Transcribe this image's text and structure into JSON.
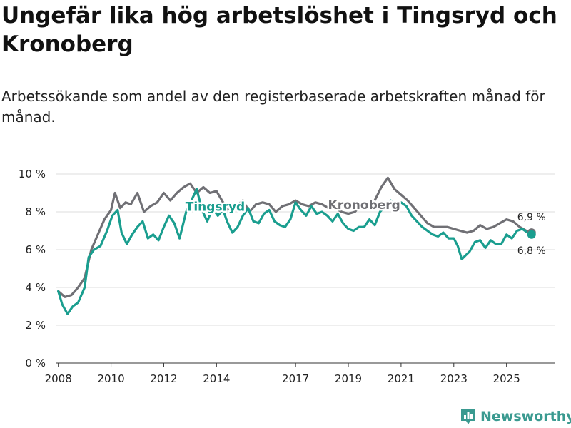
{
  "title": "Ungefär lika hög arbetslöshet i Tingsryd och Kronoberg",
  "subtitle": "Arbetssökande som andel av den registerbaserade arbetskraften månad för månad.",
  "colors": {
    "tingsryd": "#1a9e8f",
    "kronoberg": "#707075",
    "grid": "#dddddd",
    "axis": "#333333",
    "brand": "#3a9a90"
  },
  "logo": {
    "text": "Newsworthy",
    "icon": "bar-chart-icon"
  },
  "chart_data": {
    "type": "line",
    "title": "Ungefär lika hög arbetslöshet i Tingsryd och Kronoberg",
    "xlabel": "",
    "ylabel": "",
    "xlim": [
      2007.9,
      2026.85
    ],
    "ylim": [
      0,
      10
    ],
    "grid": true,
    "yticks": [
      0,
      2,
      4,
      6,
      8,
      10
    ],
    "ytick_labels": [
      "0 %",
      "2 %",
      "4 %",
      "6 %",
      "8 %",
      "10 %"
    ],
    "xticks": [
      2008,
      2010,
      2012,
      2014,
      2017,
      2019,
      2021,
      2023,
      2025
    ],
    "xtick_labels": [
      "2008",
      "2010",
      "2012",
      "2014",
      "2017",
      "2019",
      "2021",
      "2023",
      "2025"
    ],
    "series": [
      {
        "name": "Kronoberg",
        "label": "Kronoberg",
        "end_label": "6,9 %",
        "x": [
          2008.0,
          2008.25,
          2008.5,
          2008.75,
          2009.0,
          2009.25,
          2009.5,
          2009.75,
          2010.0,
          2010.15,
          2010.35,
          2010.55,
          2010.75,
          2011.0,
          2011.25,
          2011.5,
          2011.75,
          2012.0,
          2012.25,
          2012.5,
          2012.75,
          2013.0,
          2013.25,
          2013.5,
          2013.75,
          2014.0,
          2014.25,
          2014.5,
          2014.75,
          2015.0,
          2015.25,
          2015.5,
          2015.75,
          2016.0,
          2016.25,
          2016.5,
          2016.75,
          2017.0,
          2017.25,
          2017.5,
          2017.75,
          2018.0,
          2018.25,
          2018.5,
          2018.75,
          2019.0,
          2019.25,
          2019.5,
          2019.75,
          2020.0,
          2020.25,
          2020.5,
          2020.75,
          2021.0,
          2021.25,
          2021.5,
          2021.75,
          2022.0,
          2022.25,
          2022.5,
          2022.75,
          2023.0,
          2023.25,
          2023.5,
          2023.75,
          2024.0,
          2024.25,
          2024.5,
          2024.75,
          2025.0,
          2025.25,
          2025.5,
          2025.75,
          2025.95
        ],
        "values": [
          3.8,
          3.5,
          3.6,
          4.0,
          4.5,
          6.0,
          6.8,
          7.6,
          8.1,
          9.0,
          8.2,
          8.5,
          8.4,
          9.0,
          8.0,
          8.3,
          8.5,
          9.0,
          8.6,
          9.0,
          9.3,
          9.5,
          9.0,
          9.3,
          9.0,
          9.1,
          8.5,
          8.0,
          8.3,
          8.6,
          8.0,
          8.4,
          8.5,
          8.4,
          8.0,
          8.3,
          8.4,
          8.6,
          8.4,
          8.3,
          8.5,
          8.4,
          8.2,
          8.2,
          8.0,
          7.9,
          8.0,
          8.4,
          8.2,
          8.6,
          9.3,
          9.8,
          9.2,
          8.9,
          8.6,
          8.2,
          7.8,
          7.4,
          7.2,
          7.2,
          7.2,
          7.1,
          7.0,
          6.9,
          7.0,
          7.3,
          7.1,
          7.2,
          7.4,
          7.6,
          7.5,
          7.2,
          7.0,
          6.9
        ]
      },
      {
        "name": "Tingsryd",
        "label": "Tingsryd",
        "end_label": "6,8 %",
        "x": [
          2008.0,
          2008.15,
          2008.35,
          2008.55,
          2008.75,
          2009.0,
          2009.15,
          2009.35,
          2009.6,
          2009.85,
          2010.05,
          2010.25,
          2010.4,
          2010.6,
          2010.8,
          2011.0,
          2011.2,
          2011.4,
          2011.6,
          2011.8,
          2012.0,
          2012.2,
          2012.4,
          2012.6,
          2012.85,
          2013.05,
          2013.25,
          2013.45,
          2013.65,
          2013.85,
          2014.05,
          2014.25,
          2014.4,
          2014.6,
          2014.8,
          2015.0,
          2015.2,
          2015.4,
          2015.6,
          2015.8,
          2016.0,
          2016.2,
          2016.4,
          2016.6,
          2016.8,
          2017.0,
          2017.2,
          2017.4,
          2017.6,
          2017.8,
          2018.0,
          2018.2,
          2018.4,
          2018.6,
          2018.8,
          2019.0,
          2019.2,
          2019.4,
          2019.6,
          2019.8,
          2020.0,
          2020.2,
          2020.4,
          2020.6,
          2020.8,
          2021.0,
          2021.2,
          2021.4,
          2021.6,
          2021.8,
          2022.0,
          2022.2,
          2022.4,
          2022.6,
          2022.8,
          2023.0,
          2023.15,
          2023.3,
          2023.45,
          2023.6,
          2023.8,
          2024.0,
          2024.2,
          2024.4,
          2024.6,
          2024.8,
          2025.0,
          2025.2,
          2025.4,
          2025.6,
          2025.8,
          2025.95
        ],
        "values": [
          3.8,
          3.1,
          2.6,
          3.0,
          3.2,
          4.0,
          5.6,
          6.0,
          6.2,
          7.0,
          7.8,
          8.1,
          6.9,
          6.3,
          6.8,
          7.2,
          7.5,
          6.6,
          6.8,
          6.5,
          7.2,
          7.8,
          7.4,
          6.6,
          8.0,
          8.6,
          9.2,
          8.1,
          7.5,
          8.2,
          7.8,
          8.1,
          7.5,
          6.9,
          7.2,
          7.8,
          8.2,
          7.5,
          7.4,
          7.9,
          8.1,
          7.5,
          7.3,
          7.2,
          7.6,
          8.5,
          8.1,
          7.8,
          8.3,
          7.9,
          8.0,
          7.8,
          7.5,
          7.9,
          7.4,
          7.1,
          7.0,
          7.2,
          7.2,
          7.6,
          7.3,
          8.0,
          8.3,
          8.6,
          8.4,
          8.5,
          8.3,
          7.8,
          7.5,
          7.2,
          7.0,
          6.8,
          6.7,
          6.9,
          6.6,
          6.6,
          6.2,
          5.5,
          5.7,
          5.9,
          6.4,
          6.5,
          6.1,
          6.5,
          6.3,
          6.3,
          6.8,
          6.6,
          7.0,
          7.1,
          6.9,
          6.8
        ]
      }
    ]
  }
}
